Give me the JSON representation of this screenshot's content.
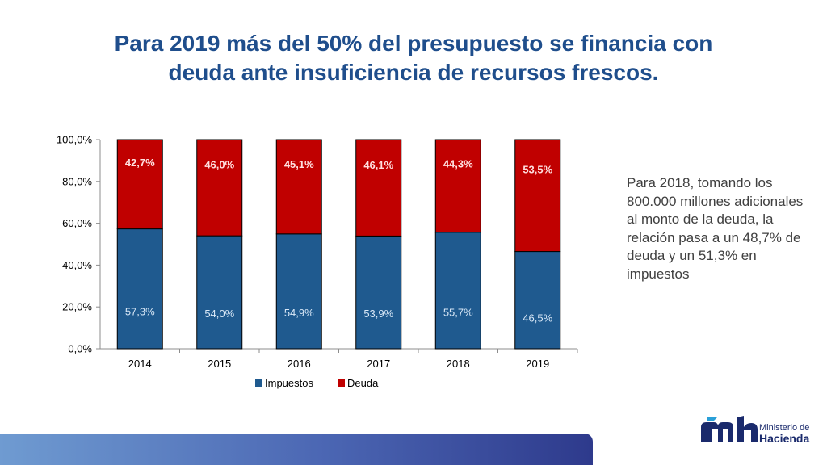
{
  "title": {
    "line1": "Para 2019 más del 50% del presupuesto se financia con",
    "line2": "deuda ante insuficiencia de recursos frescos."
  },
  "side_note": "Para 2018, tomando los 800.000 millones adicionales al monto de la deuda, la relación pasa a un 48,7% de deuda y un 51,3% en impuestos",
  "logo": {
    "line1": "Ministerio de",
    "line2": "Hacienda"
  },
  "colors": {
    "impuestos": "#1f5a8f",
    "deuda": "#c00000",
    "title": "#1f4e8c"
  },
  "chart_data": {
    "type": "bar",
    "stacked": true,
    "categories": [
      "2014",
      "2015",
      "2016",
      "2017",
      "2018",
      "2019"
    ],
    "series": [
      {
        "name": "Impuestos",
        "values": [
          57.3,
          54.0,
          54.9,
          53.9,
          55.7,
          46.5
        ],
        "labels": [
          "57,3%",
          "54,0%",
          "54,9%",
          "53,9%",
          "55,7%",
          "46,5%"
        ]
      },
      {
        "name": "Deuda",
        "values": [
          42.7,
          46.0,
          45.1,
          46.1,
          44.3,
          53.5
        ],
        "labels": [
          "42,7%",
          "46,0%",
          "45,1%",
          "46,1%",
          "44,3%",
          "53,5%"
        ]
      }
    ],
    "yticks": [
      "0,0%",
      "20,0%",
      "40,0%",
      "60,0%",
      "80,0%",
      "100,0%"
    ],
    "ylim": [
      0,
      100
    ],
    "xlabel": "",
    "ylabel": "",
    "legend": "bottom"
  }
}
